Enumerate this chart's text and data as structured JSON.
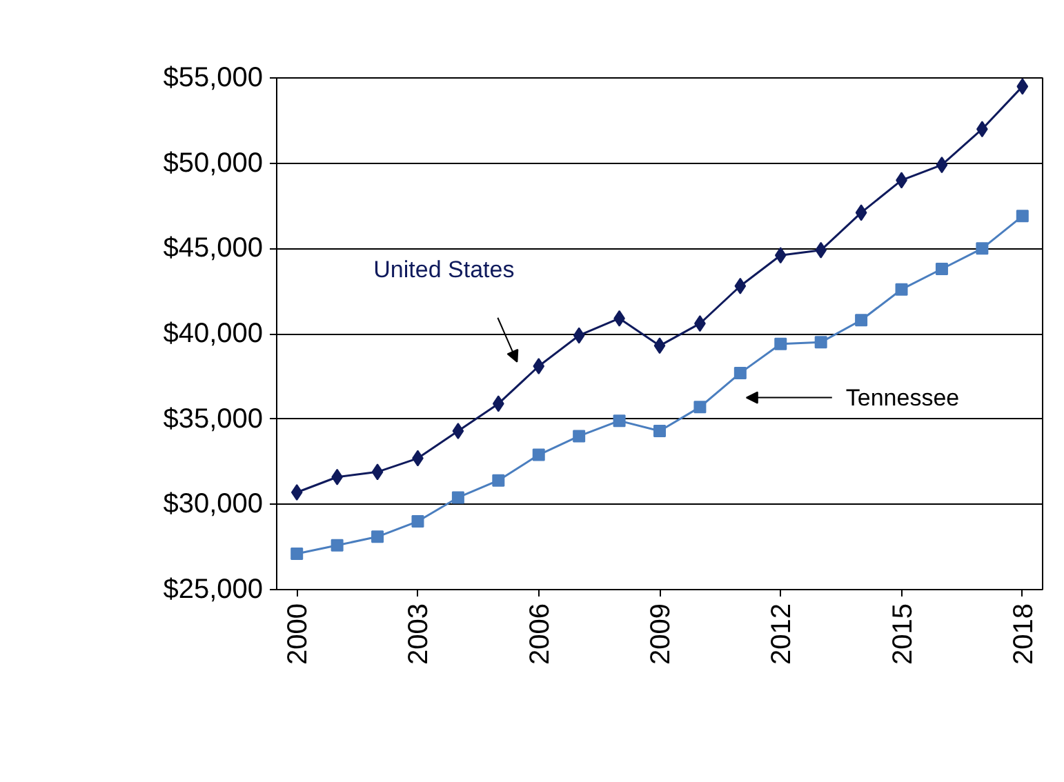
{
  "chart_data": {
    "type": "line",
    "x": [
      2000,
      2001,
      2002,
      2003,
      2004,
      2005,
      2006,
      2007,
      2008,
      2009,
      2010,
      2011,
      2012,
      2013,
      2014,
      2015,
      2016,
      2017,
      2018
    ],
    "series": [
      {
        "name": "United States",
        "color": "#0f1a5c",
        "marker": "diamond",
        "values": [
          30700,
          31600,
          31900,
          32700,
          34300,
          35900,
          38100,
          39900,
          40900,
          39300,
          40600,
          42800,
          44600,
          44900,
          47100,
          49000,
          49900,
          52000,
          54500
        ]
      },
      {
        "name": "Tennessee",
        "color": "#4a7ebf",
        "marker": "square",
        "values": [
          27100,
          27600,
          28100,
          29000,
          30400,
          31400,
          32900,
          34000,
          34900,
          34300,
          35700,
          37700,
          39400,
          39500,
          40800,
          42600,
          43800,
          45000,
          46900
        ]
      }
    ],
    "xlim": [
      1999.5,
      2018.5
    ],
    "xticks": [
      2000,
      2003,
      2006,
      2009,
      2012,
      2015,
      2018
    ],
    "ylim": [
      25000,
      55000
    ],
    "yticks": [
      {
        "value": 25000,
        "label": "$25,000"
      },
      {
        "value": 30000,
        "label": "$30,000"
      },
      {
        "value": 35000,
        "label": "$35,000"
      },
      {
        "value": 40000,
        "label": "$40,000"
      },
      {
        "value": 45000,
        "label": "$45,000"
      },
      {
        "value": 50000,
        "label": "$50,000"
      },
      {
        "value": 55000,
        "label": "$55,000"
      }
    ],
    "grid": "y"
  }
}
